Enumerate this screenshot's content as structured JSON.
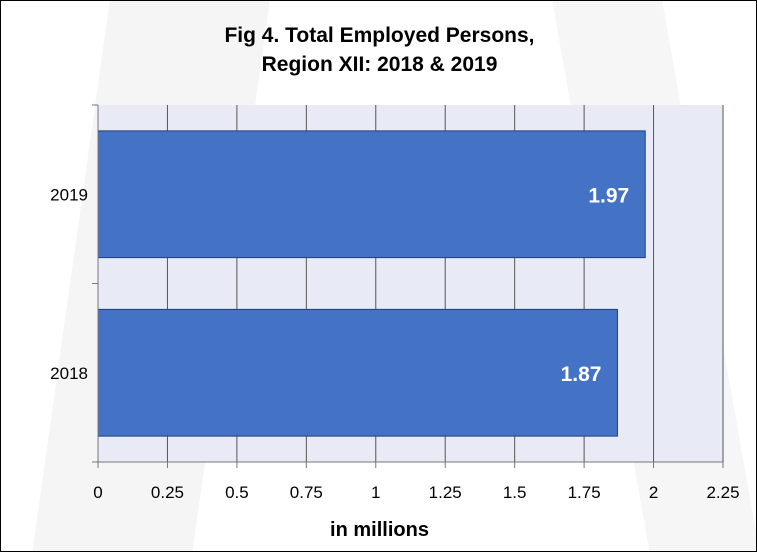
{
  "chart_data": {
    "type": "bar",
    "orientation": "horizontal",
    "title_lines": [
      "Fig 4. Total Employed Persons,",
      "Region XII: 2018 & 2019"
    ],
    "xlabel": "in millions",
    "ylabel": "",
    "categories": [
      "2019",
      "2018"
    ],
    "values": [
      1.97,
      1.87
    ],
    "data_labels": [
      "1.97",
      "1.87"
    ],
    "xlim": [
      0,
      2.25
    ],
    "x_ticks": [
      "0",
      "0.25",
      "0.5",
      "0.75",
      "1",
      "1.25",
      "1.5",
      "1.75",
      "2",
      "2.25"
    ],
    "grid": true,
    "legend": "none",
    "colors": {
      "bar": "#4472c4",
      "plot_bg": "#e8eaf6",
      "grid": "#555555",
      "label": "#ffffff"
    }
  }
}
